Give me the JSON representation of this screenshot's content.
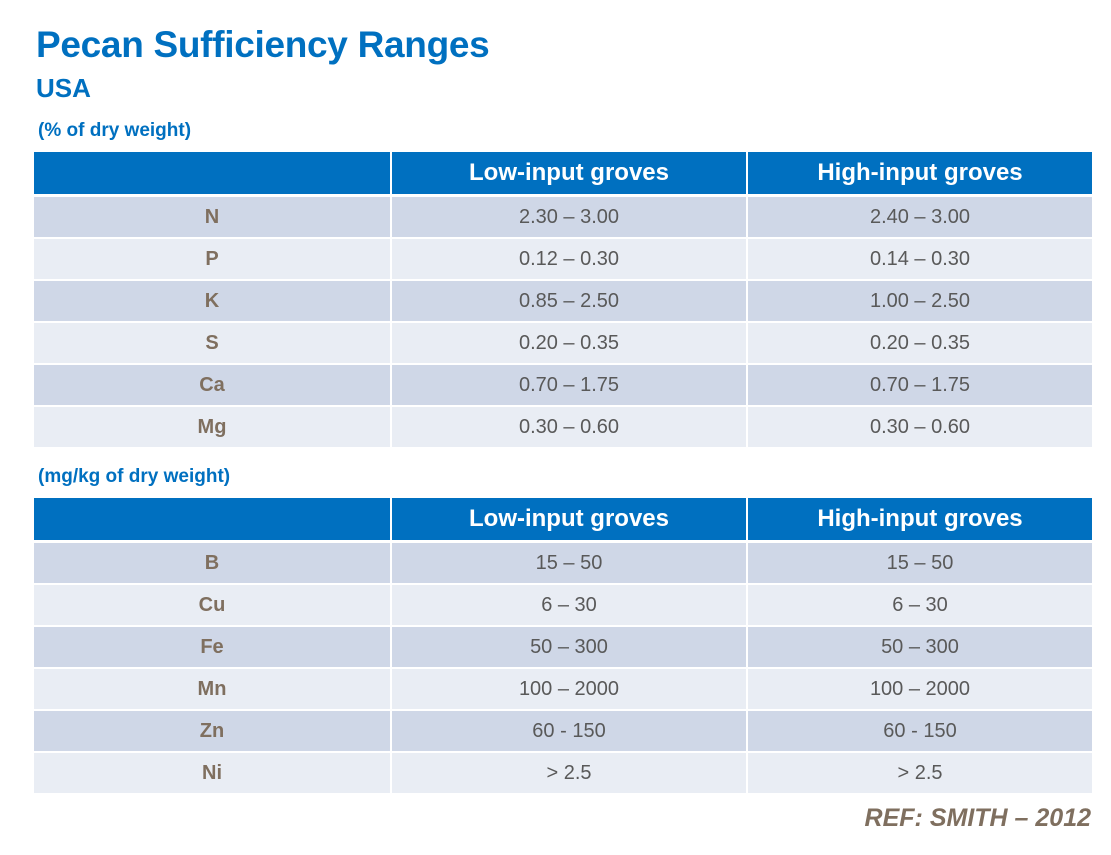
{
  "title": "Pecan Sufficiency Ranges",
  "subtitle": "USA",
  "table1": {
    "unit_label": "(% of dry weight)",
    "headers": [
      "",
      "Low-input groves",
      "High-input groves"
    ],
    "rows": [
      [
        "N",
        "2.30 – 3.00",
        "2.40 – 3.00"
      ],
      [
        "P",
        "0.12 – 0.30",
        "0.14 – 0.30"
      ],
      [
        "K",
        "0.85 – 2.50",
        "1.00 – 2.50"
      ],
      [
        "S",
        "0.20 – 0.35",
        "0.20 – 0.35"
      ],
      [
        "Ca",
        "0.70 – 1.75",
        "0.70 – 1.75"
      ],
      [
        "Mg",
        "0.30 – 0.60",
        "0.30 – 0.60"
      ]
    ]
  },
  "table2": {
    "unit_label": "(mg/kg of dry weight)",
    "headers": [
      "",
      "Low-input groves",
      "High-input groves"
    ],
    "rows": [
      [
        "B",
        "15 – 50",
        "15 – 50"
      ],
      [
        "Cu",
        "6 – 30",
        "6 – 30"
      ],
      [
        "Fe",
        "50 – 300",
        "50 – 300"
      ],
      [
        "Mn",
        "100 – 2000",
        "100 – 2000"
      ],
      [
        "Zn",
        "60 - 150",
        "60 - 150"
      ],
      [
        "Ni",
        "> 2.5",
        "> 2.5"
      ]
    ]
  },
  "reference": "REF: SMITH – 2012",
  "colors": {
    "accent": "#0070c0",
    "row_dark": "#cfd7e7",
    "row_light": "#e9edf4",
    "nutrient_text": "#7f6f5f",
    "value_text": "#595959"
  }
}
